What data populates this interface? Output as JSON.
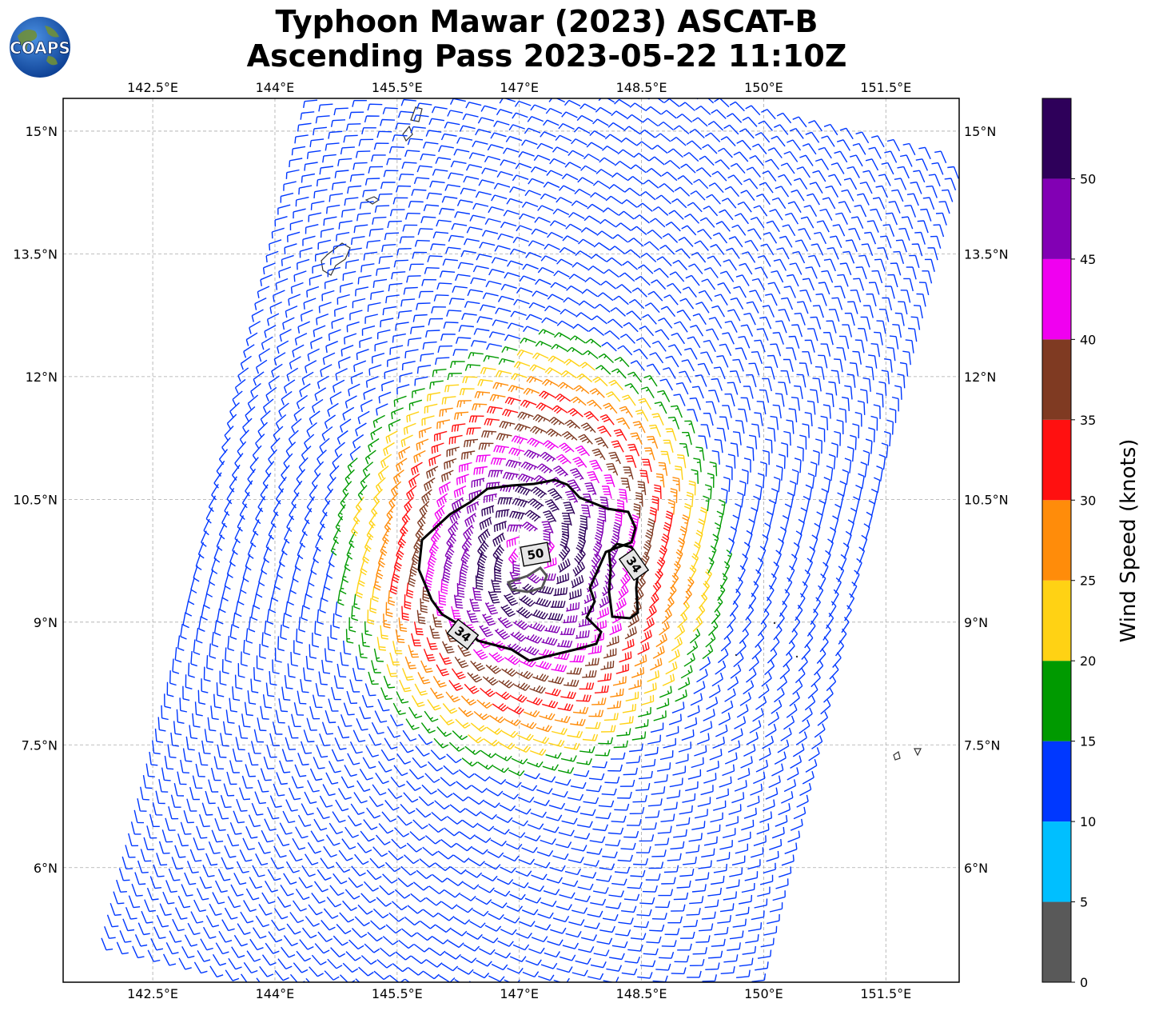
{
  "title_line1": "Typhoon Mawar (2023) ASCAT-B",
  "title_line2": "Ascending Pass 2023-05-22 11:10Z",
  "logo_text": "COAPS",
  "map": {
    "lon_range": [
      141.4,
      152.4
    ],
    "lat_range": [
      4.6,
      15.4
    ],
    "lon_ticks": [
      {
        "value": 142.5,
        "label": "142.5°E"
      },
      {
        "value": 144.0,
        "label": "144°E"
      },
      {
        "value": 145.5,
        "label": "145.5°E"
      },
      {
        "value": 147.0,
        "label": "147°E"
      },
      {
        "value": 148.5,
        "label": "148.5°E"
      },
      {
        "value": 150.0,
        "label": "150°E"
      },
      {
        "value": 151.5,
        "label": "151.5°E"
      }
    ],
    "lat_ticks": [
      {
        "value": 15.0,
        "label": "15°N"
      },
      {
        "value": 13.5,
        "label": "13.5°N"
      },
      {
        "value": 12.0,
        "label": "12°N"
      },
      {
        "value": 10.5,
        "label": "10.5°N"
      },
      {
        "value": 9.0,
        "label": "9°N"
      },
      {
        "value": 7.5,
        "label": "7.5°N"
      },
      {
        "value": 6.0,
        "label": "6°N"
      }
    ],
    "storm_center": {
      "lon": 147.15,
      "lat": 9.85
    },
    "contours": [
      {
        "label": "34",
        "color": "#000000"
      },
      {
        "label": "34",
        "color": "#000000"
      },
      {
        "label": "50",
        "color": "#555555"
      }
    ],
    "islands": [
      "Guam",
      "Rota",
      "Tinian",
      "Saipan",
      "Chuuk",
      "Ulithi-east"
    ]
  },
  "colorbar": {
    "label": "Wind Speed (knots)",
    "ticks": [
      {
        "value": 0,
        "label": "0"
      },
      {
        "value": 5,
        "label": "5"
      },
      {
        "value": 10,
        "label": "10"
      },
      {
        "value": 15,
        "label": "15"
      },
      {
        "value": 20,
        "label": "20"
      },
      {
        "value": 25,
        "label": "25"
      },
      {
        "value": 30,
        "label": "30"
      },
      {
        "value": 35,
        "label": "35"
      },
      {
        "value": 40,
        "label": "40"
      },
      {
        "value": 45,
        "label": "45"
      },
      {
        "value": 50,
        "label": "50"
      }
    ],
    "bins": [
      {
        "min": 0,
        "max": 5,
        "color": "#595959"
      },
      {
        "min": 5,
        "max": 10,
        "color": "#00bfff"
      },
      {
        "min": 10,
        "max": 15,
        "color": "#0038ff"
      },
      {
        "min": 15,
        "max": 20,
        "color": "#009a00"
      },
      {
        "min": 20,
        "max": 25,
        "color": "#ffd214"
      },
      {
        "min": 25,
        "max": 30,
        "color": "#ff8c0a"
      },
      {
        "min": 30,
        "max": 35,
        "color": "#ff1010"
      },
      {
        "min": 35,
        "max": 40,
        "color": "#7f3a22"
      },
      {
        "min": 40,
        "max": 45,
        "color": "#f000f0"
      },
      {
        "min": 45,
        "max": 50,
        "color": "#8200b4"
      },
      {
        "min": 50,
        "max": 55,
        "color": "#2e005a"
      }
    ]
  }
}
